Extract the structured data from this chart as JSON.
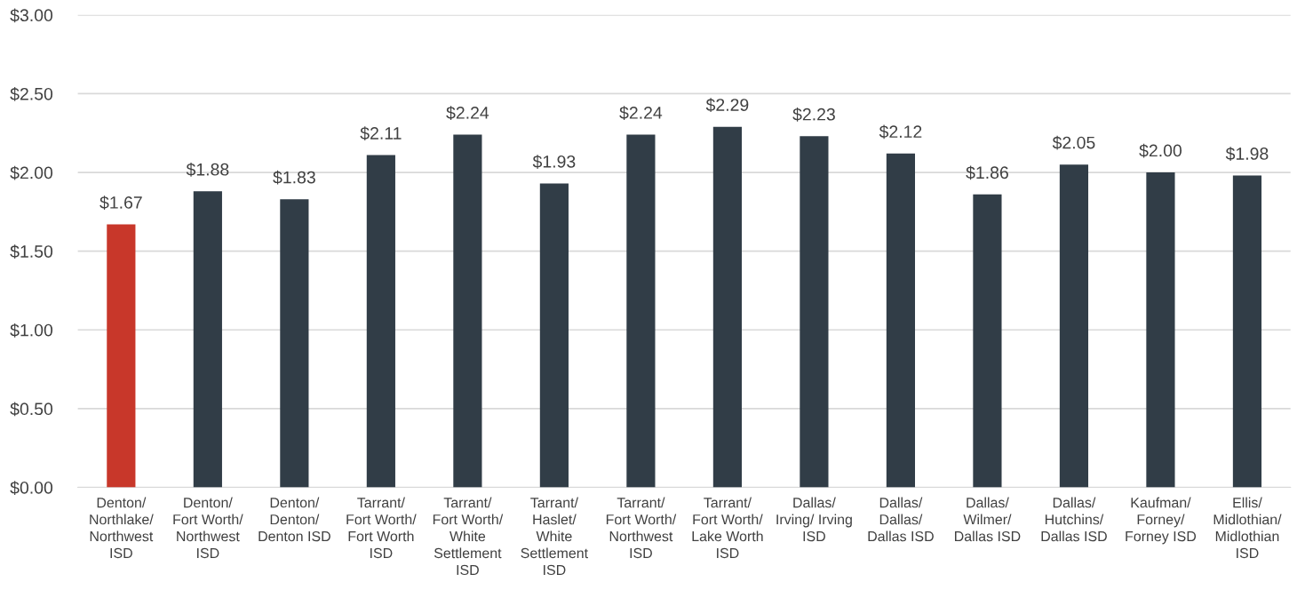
{
  "chart_data": {
    "type": "bar",
    "categories": [
      "Denton/\nNorthlake/\nNorthwest\nISD",
      "Denton/\nFort Worth/\nNorthwest\nISD",
      "Denton/\nDenton/\nDenton ISD",
      "Tarrant/\nFort Worth/\nFort Worth\nISD",
      "Tarrant/\nFort Worth/\nWhite\nSettlement\nISD",
      "Tarrant/\nHaslet/\nWhite\nSettlement\nISD",
      "Tarrant/\nFort Worth/\nNorthwest\nISD",
      "Tarrant/\nFort Worth/\nLake Worth\nISD",
      "Dallas/\nIrving/ Irving\nISD",
      "Dallas/\nDallas/\nDallas ISD",
      "Dallas/\nWilmer/\nDallas ISD",
      "Dallas/\nHutchins/\nDallas ISD",
      "Kaufman/\nForney/\nForney ISD",
      "Ellis/\nMidlothian/\nMidlothian\nISD"
    ],
    "values": [
      1.67,
      1.88,
      1.83,
      2.11,
      2.24,
      1.93,
      2.24,
      2.29,
      2.23,
      2.12,
      1.86,
      2.05,
      2.0,
      1.98
    ],
    "value_labels": [
      "$1.67",
      "$1.88",
      "$1.83",
      "$2.11",
      "$2.24",
      "$1.93",
      "$2.24",
      "$2.29",
      "$2.23",
      "$2.12",
      "$1.86",
      "$2.05",
      "$2.00",
      "$1.98"
    ],
    "colors": [
      "#c8372a",
      "#313d47",
      "#313d47",
      "#313d47",
      "#313d47",
      "#313d47",
      "#313d47",
      "#313d47",
      "#313d47",
      "#313d47",
      "#313d47",
      "#313d47",
      "#313d47",
      "#313d47"
    ],
    "ylim": [
      0,
      3
    ],
    "yticks": [
      {
        "value": 0,
        "label": "$0.00"
      },
      {
        "value": 0.5,
        "label": "$0.50"
      },
      {
        "value": 1,
        "label": "$1.00"
      },
      {
        "value": 1.5,
        "label": "$1.50"
      },
      {
        "value": 2,
        "label": "$2.00"
      },
      {
        "value": 2.5,
        "label": "$2.50"
      },
      {
        "value": 3,
        "label": "$3.00"
      }
    ],
    "grid": "y"
  }
}
